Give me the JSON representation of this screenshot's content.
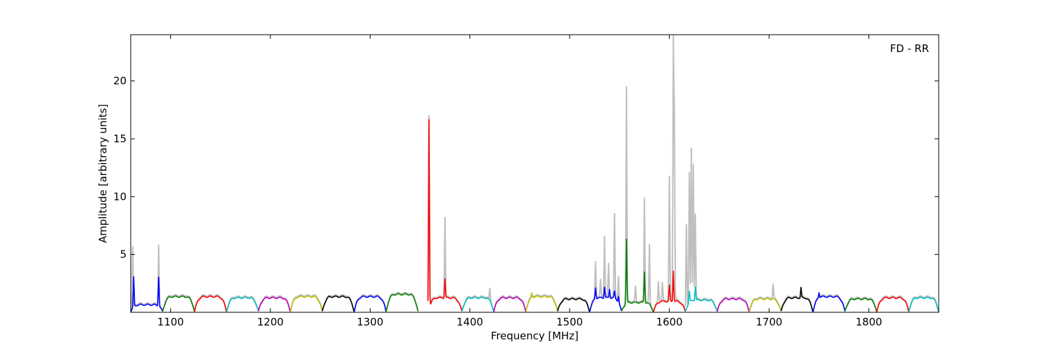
{
  "chart_data": {
    "type": "line",
    "title": "",
    "annotation": "FD - RR",
    "xlabel": "Frequency [MHz]",
    "ylabel": "Amplitude [arbitrary units]",
    "xlim": [
      1060,
      1870
    ],
    "ylim": [
      0,
      24
    ],
    "xticks": [
      1100,
      1200,
      1300,
      1400,
      1500,
      1600,
      1700,
      1800
    ],
    "yticks": [
      5,
      10,
      15,
      20
    ],
    "grid": false,
    "background": {
      "name": "raw",
      "color": "#bfbfbf",
      "spikes": [
        [
          1062,
          6.0
        ],
        [
          1088,
          6.0
        ],
        [
          1375,
          8.2
        ],
        [
          1359,
          18.0
        ],
        [
          1420,
          2.3
        ],
        [
          1526,
          4.5
        ],
        [
          1531,
          2.8
        ],
        [
          1535,
          6.6
        ],
        [
          1539,
          4.2
        ],
        [
          1545,
          8.5
        ],
        [
          1549,
          3.6
        ],
        [
          1557,
          19.6
        ],
        [
          1566,
          2.2
        ],
        [
          1575,
          9.9
        ],
        [
          1580,
          6.0
        ],
        [
          1589,
          2.8
        ],
        [
          1593,
          2.5
        ],
        [
          1600,
          11.7
        ],
        [
          1604,
          24.0
        ],
        [
          1605,
          16.5
        ],
        [
          1617,
          8.4
        ],
        [
          1620,
          12.3
        ],
        [
          1622,
          14.2
        ],
        [
          1624,
          12.8
        ],
        [
          1626,
          8.5
        ],
        [
          1704,
          2.4
        ]
      ]
    },
    "segment_width_mhz": 32,
    "segment_start_mhz": 1060,
    "segment_colors": [
      "#0000ff",
      "#008000",
      "#ff0000",
      "#00bfbf",
      "#bf00bf",
      "#bfbf00",
      "#000000"
    ],
    "segments": [
      {
        "x0": 1060,
        "x1": 1092,
        "color": "#0000ff",
        "level": 0.6,
        "spikes": [
          [
            1063,
            3.2
          ],
          [
            1088,
            3.2
          ]
        ]
      },
      {
        "x0": 1092,
        "x1": 1124,
        "color": "#008000",
        "level": 1.3,
        "spikes": []
      },
      {
        "x0": 1124,
        "x1": 1156,
        "color": "#ff0000",
        "level": 1.3,
        "spikes": []
      },
      {
        "x0": 1156,
        "x1": 1188,
        "color": "#00bfbf",
        "level": 1.2,
        "spikes": []
      },
      {
        "x0": 1188,
        "x1": 1220,
        "color": "#bf00bf",
        "level": 1.2,
        "spikes": []
      },
      {
        "x0": 1220,
        "x1": 1252,
        "color": "#bfbf00",
        "level": 1.3,
        "spikes": []
      },
      {
        "x0": 1252,
        "x1": 1284,
        "color": "#000000",
        "level": 1.3,
        "spikes": []
      },
      {
        "x0": 1284,
        "x1": 1316,
        "color": "#0000ff",
        "level": 1.3,
        "spikes": []
      },
      {
        "x0": 1316,
        "x1": 1348,
        "color": "#008000",
        "level": 1.5,
        "spikes": []
      },
      {
        "x0": 1358,
        "x1": 1392,
        "color": "#ff0000",
        "level": 1.2,
        "spikes": [
          [
            1359,
            17.6
          ],
          [
            1375,
            2.9
          ]
        ]
      },
      {
        "x0": 1392,
        "x1": 1424,
        "color": "#00bfbf",
        "level": 1.2,
        "spikes": []
      },
      {
        "x0": 1424,
        "x1": 1456,
        "color": "#bf00bf",
        "level": 1.2,
        "spikes": []
      },
      {
        "x0": 1456,
        "x1": 1488,
        "color": "#bfbf00",
        "level": 1.3,
        "spikes": [
          [
            1462,
            1.7
          ]
        ]
      },
      {
        "x0": 1488,
        "x1": 1520,
        "color": "#000000",
        "level": 1.1,
        "spikes": []
      },
      {
        "x0": 1520,
        "x1": 1552,
        "color": "#0000ff",
        "level": 1.2,
        "spikes": [
          [
            1526,
            2.2
          ],
          [
            1535,
            2.2
          ],
          [
            1540,
            2.0
          ],
          [
            1545,
            1.8
          ],
          [
            1549,
            1.8
          ]
        ]
      },
      {
        "x0": 1552,
        "x1": 1584,
        "color": "#008000",
        "level": 0.8,
        "spikes": [
          [
            1557,
            6.4
          ],
          [
            1575,
            3.5
          ]
        ]
      },
      {
        "x0": 1584,
        "x1": 1616,
        "color": "#ff0000",
        "level": 0.9,
        "spikes": [
          [
            1600,
            2.3
          ],
          [
            1604,
            3.6
          ]
        ]
      },
      {
        "x0": 1616,
        "x1": 1648,
        "color": "#00bfbf",
        "level": 1.0,
        "spikes": [
          [
            1620,
            2.0
          ],
          [
            1626,
            2.2
          ]
        ]
      },
      {
        "x0": 1648,
        "x1": 1680,
        "color": "#bf00bf",
        "level": 1.1,
        "spikes": []
      },
      {
        "x0": 1680,
        "x1": 1712,
        "color": "#bfbf00",
        "level": 1.1,
        "spikes": []
      },
      {
        "x0": 1712,
        "x1": 1744,
        "color": "#000000",
        "level": 1.2,
        "spikes": [
          [
            1732,
            2.1
          ]
        ]
      },
      {
        "x0": 1744,
        "x1": 1776,
        "color": "#0000ff",
        "level": 1.3,
        "spikes": [
          [
            1750,
            1.8
          ]
        ]
      },
      {
        "x0": 1776,
        "x1": 1808,
        "color": "#008000",
        "level": 1.1,
        "spikes": []
      },
      {
        "x0": 1808,
        "x1": 1840,
        "color": "#ff0000",
        "level": 1.2,
        "spikes": []
      },
      {
        "x0": 1840,
        "x1": 1870,
        "color": "#00bfbf",
        "level": 1.2,
        "spikes": []
      }
    ]
  }
}
